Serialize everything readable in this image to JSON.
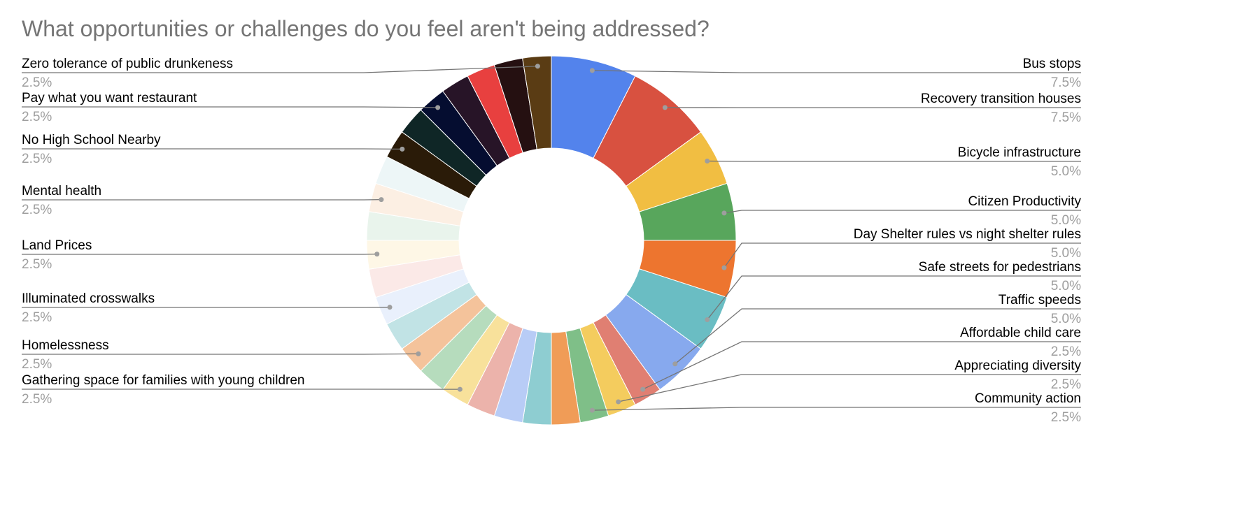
{
  "chart_data": {
    "type": "donut",
    "title": "What opportunities or challenges do you feel aren't being addressed?",
    "categories": [
      "Bus stops",
      "Recovery transition houses",
      "Bicycle infrastructure",
      "Citizen Productivity",
      "Day Shelter rules vs night shelter rules",
      "Safe streets for pedestrians",
      "Traffic speeds",
      "Affordable child care",
      "Appreciating diversity",
      "Community action",
      null,
      null,
      null,
      null,
      "Gathering space for families with young children",
      null,
      "Homelessness",
      null,
      "Illuminated crosswalks",
      null,
      "Land Prices",
      null,
      "Mental health",
      null,
      "No High School Nearby",
      null,
      "Pay what you want restaurant",
      null,
      null,
      null,
      "Zero tolerance of public drunkeness"
    ],
    "values": [
      7.5,
      7.5,
      5,
      5,
      5,
      5,
      5,
      2.5,
      2.5,
      2.5,
      2.5,
      2.5,
      2.5,
      2.5,
      2.5,
      2.5,
      2.5,
      2.5,
      2.5,
      2.5,
      2.5,
      2.5,
      2.5,
      2.5,
      2.5,
      2.5,
      2.5,
      2.5,
      2.5,
      2.5,
      2.5
    ],
    "value_labels": [
      "7.5%",
      "7.5%",
      "5.0%",
      "5.0%",
      "5.0%",
      "5.0%",
      "5.0%",
      "2.5%",
      "2.5%",
      "2.5%",
      null,
      null,
      null,
      null,
      "2.5%",
      null,
      "2.5%",
      null,
      "2.5%",
      null,
      "2.5%",
      null,
      "2.5%",
      null,
      "2.5%",
      null,
      "2.5%",
      null,
      null,
      null,
      "2.5%"
    ],
    "colors": [
      "#5383ec",
      "#d85140",
      "#f1be42",
      "#58a65c",
      "#ed752f",
      "#6abdc3",
      "#87a9ee",
      "#e07f72",
      "#f4cc5e",
      "#7fbf88",
      "#f09c57",
      "#8ecdd1",
      "#b8ccf6",
      "#ecb3ab",
      "#f8e19b",
      "#b6dcbd",
      "#f4c39b",
      "#c1e3e5",
      "#e9f0fc",
      "#fbe9e7",
      "#fef7e6",
      "#e9f4ec",
      "#fcefe3",
      "#edf6f7",
      "#2a1b08",
      "#0f2626",
      "#050d30",
      "#271427",
      "#e8403f",
      "#251011",
      "#5a3c14"
    ]
  }
}
